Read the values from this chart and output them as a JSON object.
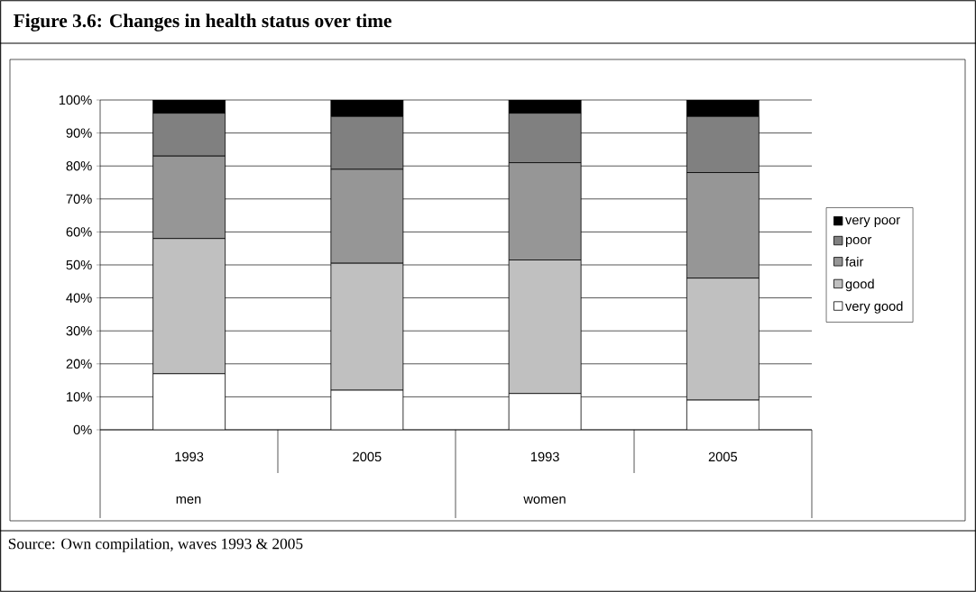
{
  "chart_data": {
    "type": "bar",
    "stacked": true,
    "title": "Figure 3.6: Changes in health status over time",
    "categories": [
      "1993",
      "2005",
      "1993",
      "2005"
    ],
    "series": [
      {
        "name": "very good",
        "color": "#ffffff",
        "values": [
          17,
          12,
          11,
          9
        ]
      },
      {
        "name": "good",
        "color": "#c0c0c0",
        "values": [
          41,
          38.5,
          40.5,
          37
        ]
      },
      {
        "name": "fair",
        "color": "#969696",
        "values": [
          25,
          28.5,
          29.5,
          32
        ]
      },
      {
        "name": "poor",
        "color": "#808080",
        "values": [
          13,
          16,
          15,
          17
        ]
      },
      {
        "name": "very poor",
        "color": "#000000",
        "values": [
          4,
          5,
          4,
          5
        ]
      }
    ],
    "ylim": [
      0,
      100
    ],
    "yticks": [
      {
        "value": 0,
        "label": "0%"
      },
      {
        "value": 10,
        "label": "10%"
      },
      {
        "value": 20,
        "label": "20%"
      },
      {
        "value": 30,
        "label": "30%"
      },
      {
        "value": 40,
        "label": "40%"
      },
      {
        "value": 50,
        "label": "50%"
      },
      {
        "value": 60,
        "label": "60%"
      },
      {
        "value": 70,
        "label": "70%"
      },
      {
        "value": 80,
        "label": "80%"
      },
      {
        "value": 90,
        "label": "90%"
      },
      {
        "value": 100,
        "label": "100%"
      }
    ],
    "grid": "y",
    "legend": "right",
    "annotations": [
      "men",
      "women",
      "Source: Own compilation, waves 1993 & 2005"
    ]
  }
}
